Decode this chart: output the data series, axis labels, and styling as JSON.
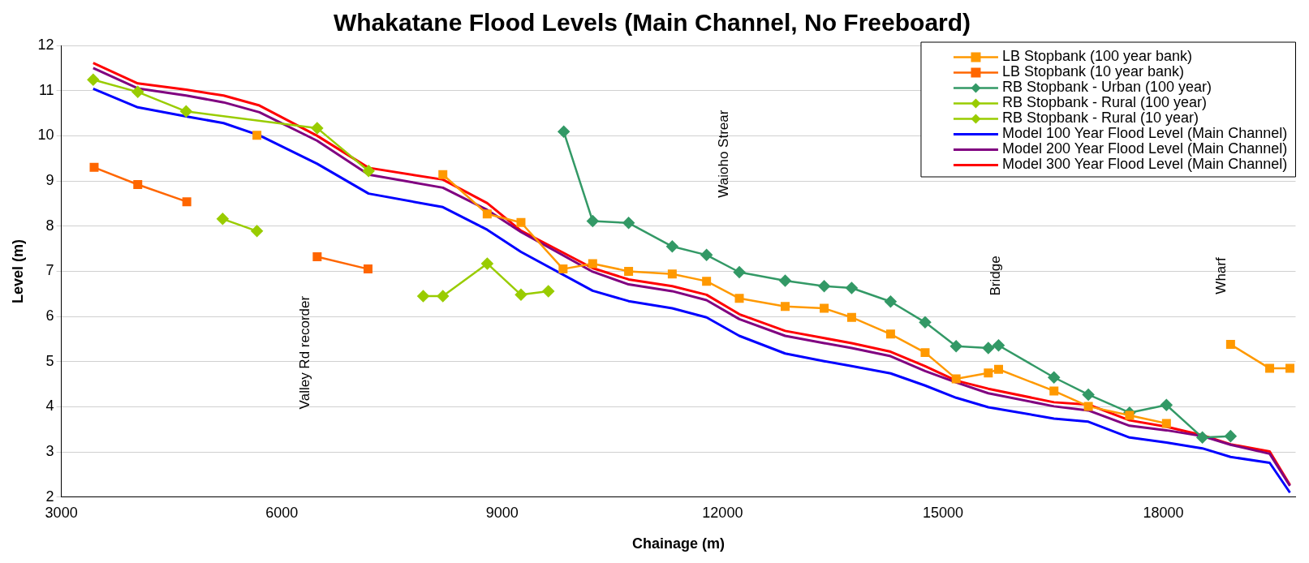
{
  "chart_data": {
    "type": "line",
    "title": "Whakatane Flood Levels (Main Channel, No Freeboard)",
    "xlabel": "Chainage (m)",
    "ylabel": "Level (m)",
    "xlim": [
      3000,
      19800
    ],
    "xticks": [
      3000,
      6000,
      9000,
      12000,
      15000,
      18000
    ],
    "ylim": [
      2,
      12
    ],
    "yticks": [
      2,
      3,
      4,
      5,
      6,
      7,
      8,
      9,
      10,
      11,
      12
    ],
    "grid": "y",
    "legend": "top right",
    "annotations": [
      "Valley Rd recorder",
      "Waioho Strear",
      "Bridge",
      "Wharf"
    ],
    "series": [
      {
        "name": "LB Stopbank (100 year bank)",
        "color": "#ff9900",
        "marker": "square",
        "x": [
          5662,
          7000,
          8193,
          8796,
          9256,
          9829,
          10232,
          10721,
          11315,
          11782,
          12228,
          12852,
          13383,
          13757,
          14287,
          14757,
          15179,
          15617,
          15757,
          16511,
          16979,
          17540,
          18042,
          18500,
          18915,
          19447,
          19723
        ],
        "values": [
          10.01,
          null,
          9.14,
          8.27,
          8.08,
          7.05,
          7.17,
          7.0,
          6.94,
          6.78,
          6.4,
          6.22,
          6.18,
          5.98,
          5.61,
          5.2,
          4.62,
          4.75,
          4.83,
          4.35,
          4.01,
          3.81,
          3.63,
          null,
          5.38,
          4.85,
          4.85
        ]
      },
      {
        "name": "LB Stopbank (10 year bank)",
        "color": "#ff6600",
        "marker": "square",
        "x": [
          3446,
          4040,
          4707,
          5600,
          6482,
          7174
        ],
        "values": [
          9.3,
          8.92,
          8.54,
          null,
          7.32,
          7.05
        ]
      },
      {
        "name": "RB Stopbank - Urban (100 year)",
        "color": "#339966",
        "marker": "diamond",
        "x": [
          9838,
          10232,
          10721,
          11315,
          11782,
          12228,
          12852,
          13383,
          13757,
          14287,
          14757,
          15179,
          15617,
          15757,
          16511,
          16979,
          17540,
          18042,
          18531,
          18915
        ],
        "values": [
          10.09,
          8.11,
          8.07,
          7.55,
          7.36,
          6.98,
          6.79,
          6.67,
          6.63,
          6.33,
          5.87,
          5.34,
          5.3,
          5.36,
          4.65,
          4.27,
          3.87,
          4.04,
          3.32,
          3.35
        ]
      },
      {
        "name": "RB Stopbank - Rural (100 year)",
        "color": "#99cc00",
        "marker": "diamond",
        "x": [
          3433,
          4040,
          4698,
          6482,
          7182
        ],
        "values": [
          11.24,
          10.97,
          10.54,
          10.17,
          9.22
        ]
      },
      {
        "name": "RB Stopbank - Rural (10 year)",
        "color": "#99cc00",
        "marker": "diamond",
        "x": [
          5195,
          5662,
          6800,
          7925,
          8193,
          8797,
          9256,
          9629
        ],
        "values": [
          8.16,
          7.89,
          null,
          6.45,
          6.45,
          7.17,
          6.48,
          6.56
        ]
      },
      {
        "name": "Model 100 Year Flood Level (Main Channel)",
        "color": "#0000ff",
        "marker": "none",
        "x": [
          3433,
          4040,
          4698,
          5208,
          5696,
          6482,
          7182,
          8193,
          8796,
          9256,
          10232,
          10721,
          11315,
          11782,
          12228,
          12852,
          13383,
          13757,
          14287,
          14757,
          15179,
          15617,
          16511,
          16979,
          17540,
          18042,
          18531,
          18915,
          19447,
          19723
        ],
        "values": [
          11.04,
          10.63,
          10.43,
          10.28,
          10.01,
          9.38,
          8.72,
          8.42,
          7.92,
          7.43,
          6.57,
          6.34,
          6.18,
          5.98,
          5.57,
          5.18,
          5.01,
          4.9,
          4.74,
          4.47,
          4.2,
          3.99,
          3.74,
          3.67,
          3.32,
          3.21,
          3.08,
          2.89,
          2.76,
          2.1
        ]
      },
      {
        "name": "Model 200 Year Flood Level (Main Channel)",
        "color": "#800080",
        "marker": "none",
        "x": [
          3433,
          4040,
          4698,
          5208,
          5696,
          6482,
          7182,
          8193,
          8796,
          9256,
          10232,
          10721,
          11315,
          11782,
          12228,
          12852,
          13383,
          13757,
          14287,
          14757,
          15179,
          15617,
          16511,
          16979,
          17540,
          18042,
          18531,
          18915,
          19447,
          19723
        ],
        "values": [
          11.5,
          11.05,
          10.89,
          10.74,
          10.52,
          9.89,
          9.14,
          8.85,
          8.36,
          7.87,
          6.99,
          6.71,
          6.56,
          6.36,
          5.94,
          5.57,
          5.41,
          5.3,
          5.12,
          4.79,
          4.54,
          4.3,
          4.01,
          3.92,
          3.58,
          3.48,
          3.35,
          3.16,
          2.96,
          2.25
        ]
      },
      {
        "name": "Model 300 Year Flood Level (Main Channel)",
        "color": "#ff0000",
        "marker": "none",
        "x": [
          3433,
          4040,
          4698,
          5208,
          5696,
          6482,
          7182,
          8193,
          8796,
          9256,
          10232,
          10721,
          11315,
          11782,
          12228,
          12852,
          13383,
          13757,
          14287,
          14757,
          15179,
          15617,
          16511,
          16979,
          17540,
          18042,
          18531,
          18915,
          19447,
          19723
        ],
        "values": [
          11.61,
          11.16,
          11.02,
          10.89,
          10.67,
          10.0,
          9.29,
          9.03,
          8.51,
          7.9,
          7.07,
          6.82,
          6.67,
          6.48,
          6.05,
          5.68,
          5.52,
          5.41,
          5.22,
          4.9,
          4.58,
          4.4,
          4.1,
          4.05,
          3.7,
          3.56,
          3.37,
          3.17,
          3.01,
          2.27
        ]
      }
    ]
  }
}
